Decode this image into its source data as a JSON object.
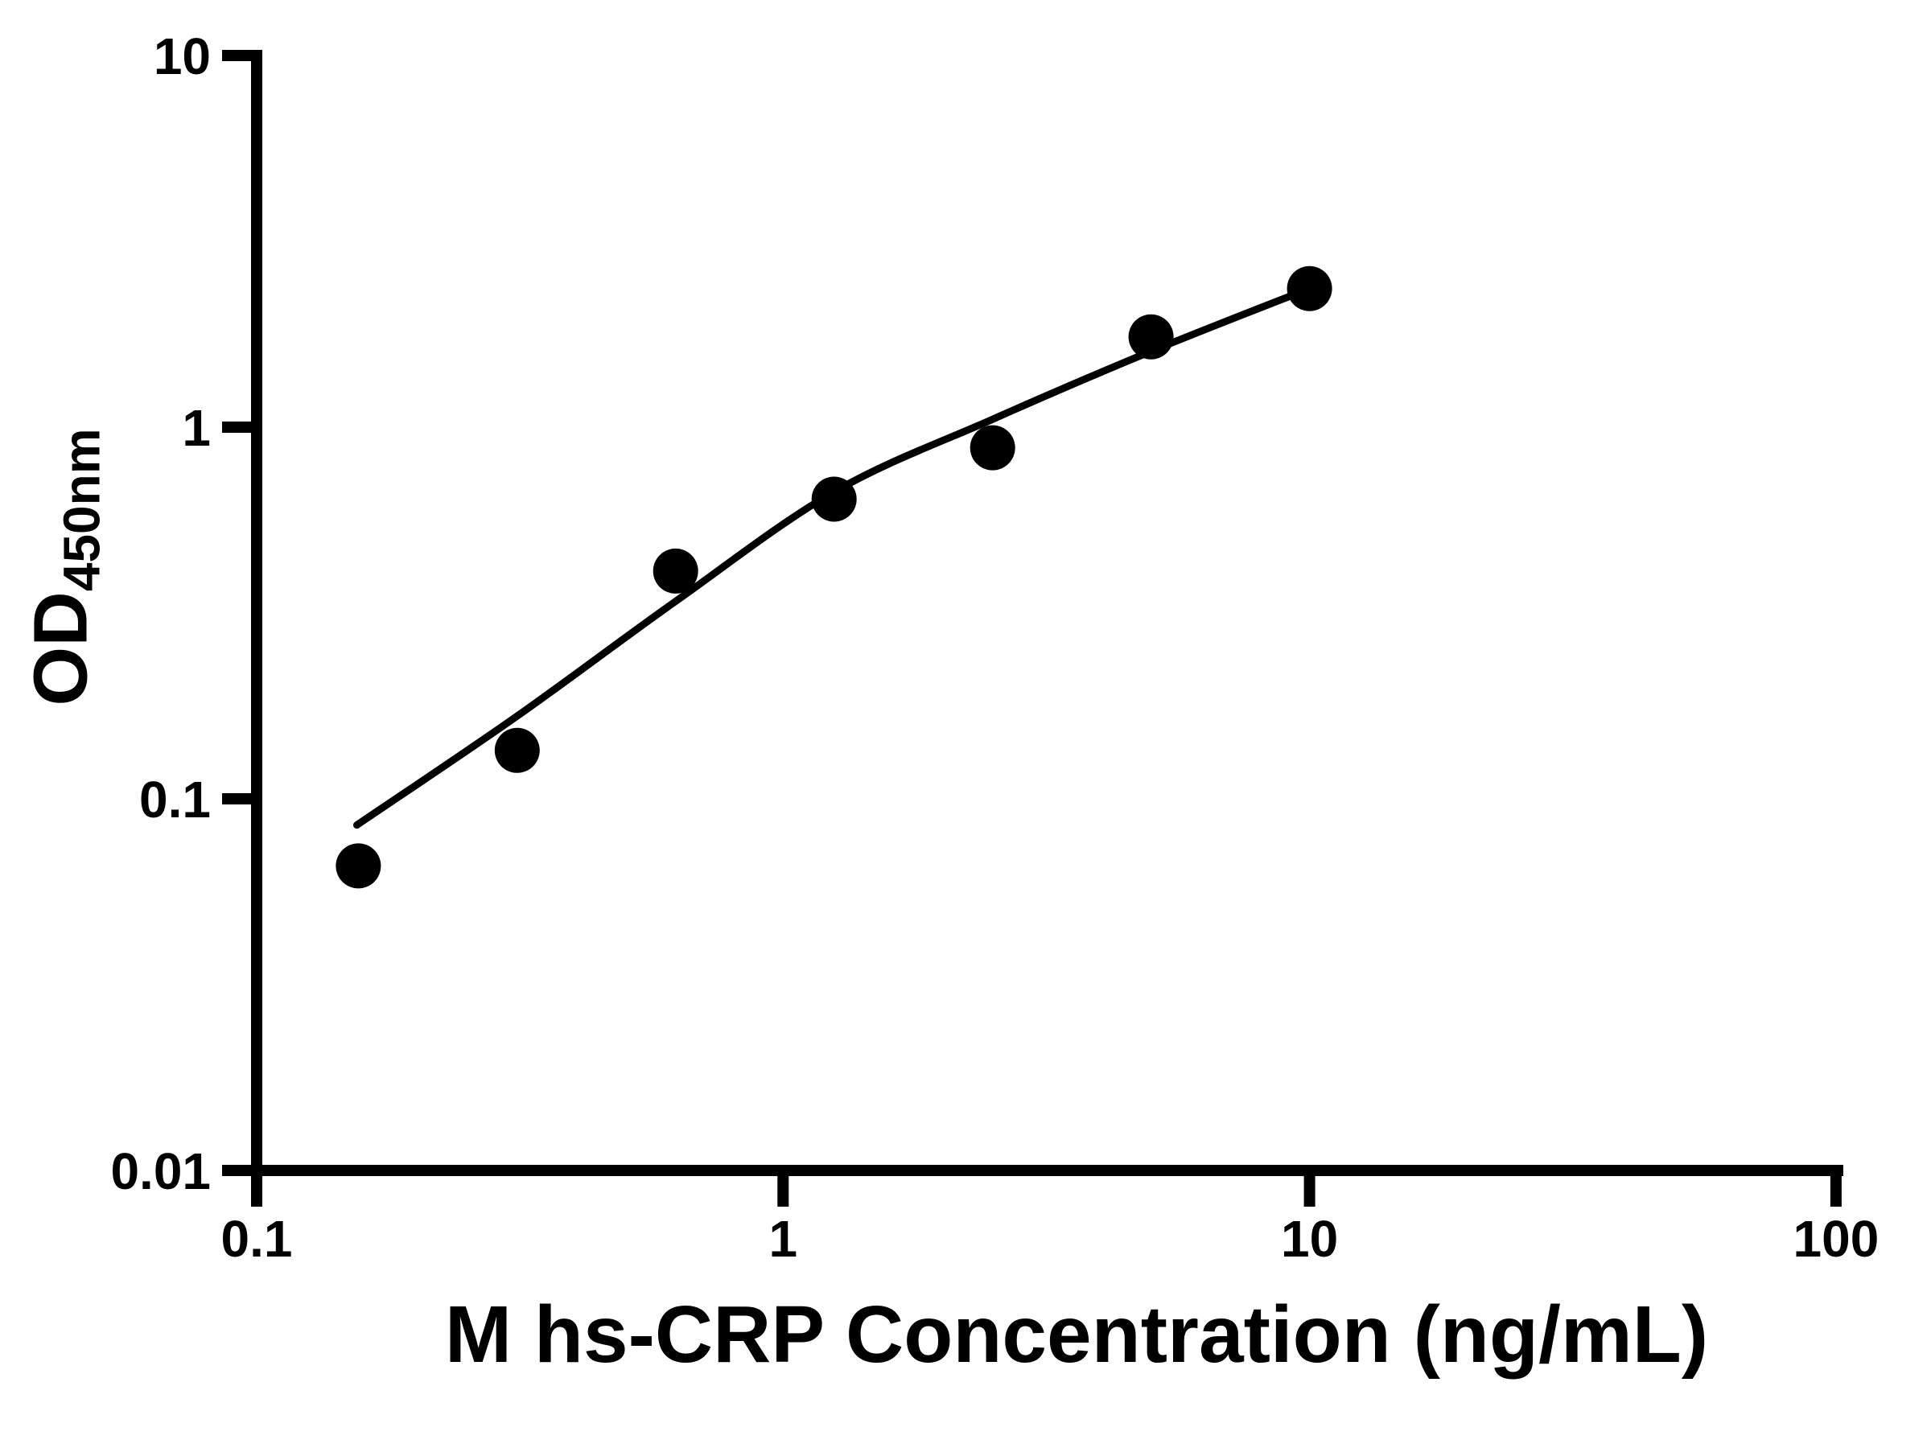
{
  "figure": {
    "background": "#ffffff",
    "ink_color": "#000000"
  },
  "chart_data": {
    "type": "scatter",
    "title": "",
    "xlabel": "M hs-CRP Concentration (ng/mL)",
    "ylabel_main": "OD",
    "ylabel_sub": "450nm",
    "x_scale": "log",
    "y_scale": "log",
    "xlim": [
      0.1,
      100
    ],
    "ylim": [
      0.01,
      10
    ],
    "grid": false,
    "legend": false,
    "x_ticks": [
      {
        "value": 0.1,
        "label": "0.1"
      },
      {
        "value": 1,
        "label": "1"
      },
      {
        "value": 10,
        "label": "10"
      },
      {
        "value": 100,
        "label": "100"
      }
    ],
    "y_ticks": [
      {
        "value": 10,
        "label": "10"
      },
      {
        "value": 1,
        "label": "1"
      },
      {
        "value": 0.1,
        "label": "0.1"
      },
      {
        "value": 0.01,
        "label": "0.01"
      }
    ],
    "series": [
      {
        "name": "standard-points",
        "marker": "circle",
        "marker_radius_px": 28,
        "color": "#000000",
        "x": [
          0.156,
          0.3125,
          0.625,
          1.25,
          2.5,
          5,
          10
        ],
        "y": [
          0.066,
          0.135,
          0.41,
          0.64,
          0.88,
          1.75,
          2.36
        ]
      }
    ],
    "fit_curve": {
      "name": "fitted-standard-curve",
      "color": "#000000",
      "stroke_px": 9,
      "x": [
        0.155,
        0.3125,
        0.625,
        1.25,
        2.5,
        5,
        10
      ],
      "y": [
        0.085,
        0.167,
        0.34,
        0.67,
        1.05,
        1.6,
        2.36
      ]
    }
  }
}
